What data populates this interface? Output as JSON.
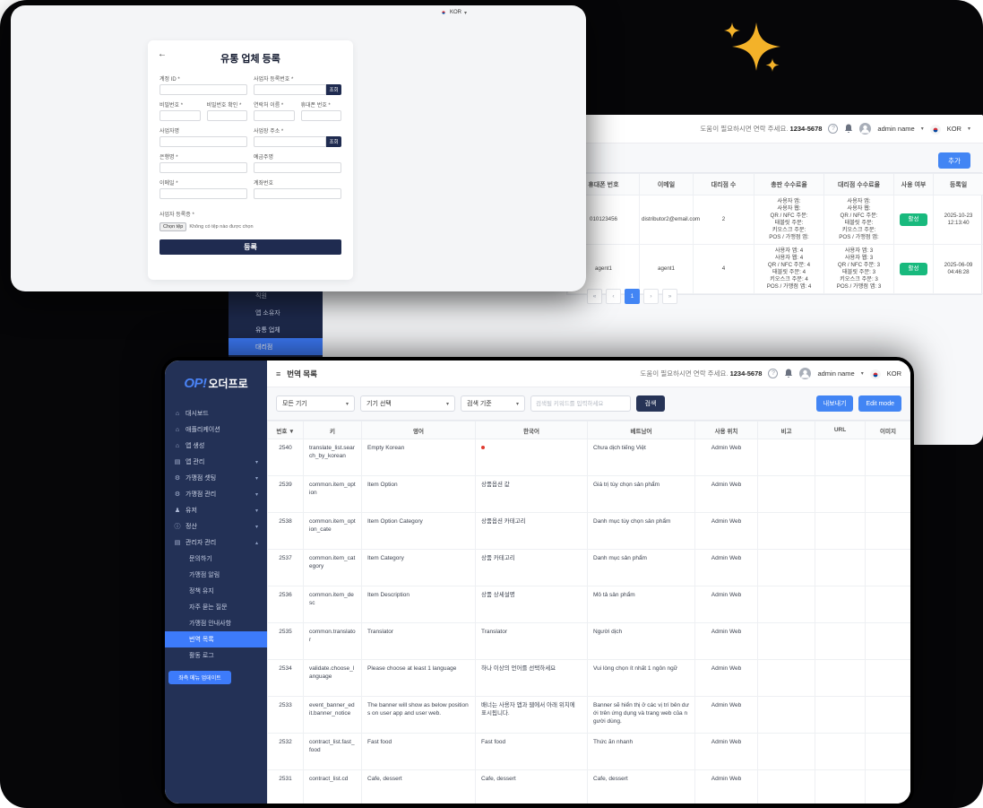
{
  "colors": {
    "accent_blue": "#4285f4",
    "navy": "#1f2b50",
    "sidebar_navy": "#233156",
    "badge_green": "#18b97d",
    "sparkle_gold": "#f3b229",
    "required_red": "#e03a2f"
  },
  "header": {
    "help_text": "도움이 필요하시면 연락 주세요.",
    "phone": "1234-5678",
    "help_icon": "?",
    "user_name": "admin name",
    "lang": "KOR",
    "caret": "▾"
  },
  "register_form": {
    "window_lang": "KOR",
    "back_icon": "←",
    "title": "유통 업체 등록",
    "labels": {
      "account_id": "계정 ID *",
      "business_reg_no": "사업자 등록번호 *",
      "password": "비밀번호 *",
      "password_confirm": "비밀번호 확인 *",
      "contact_name": "연락처 이름 *",
      "mobile_no": "휴대폰 번호 *",
      "business_name": "사업자명",
      "business_address": "사업장 주소 *",
      "bank_name": "은행명 *",
      "account_holder": "예금주명",
      "email": "이메일 *",
      "account_no": "계좌번호",
      "business_cert": "사업자 등록증 *"
    },
    "lookup_button": "조회",
    "file_button": "Chọn tệp",
    "file_status": "Không có tệp nào được chọn",
    "submit_button": "등록"
  },
  "distributor": {
    "add_button": "추가",
    "sidebar": {
      "items": [
        {
          "label": "직원"
        },
        {
          "label": "앱 소유자"
        },
        {
          "label": "유통 업체"
        },
        {
          "label": "대리점",
          "active": true
        },
        {
          "label": "정산",
          "parent": true
        }
      ]
    },
    "table": {
      "headers": [
        "휴대폰 번호",
        "이메일",
        "대리점 수",
        "총판 수수료율",
        "대리점 수수료율",
        "사용 여부",
        "등록일"
      ],
      "rows": [
        {
          "phone": "010123456",
          "email": "distributor2@email.com",
          "agents": "2",
          "fee_head": "사용자 앱:\n사용자 웹:\nQR / NFC 주문:\n태블릿 주문:\n키오스크 주문:\nPOS / 가맹점 앱:",
          "fee_agent": "사용자 앱:\n사용자 웹:\nQR / NFC 주문:\n태블릿 주문:\n키오스크 주문:\nPOS / 가맹점 앱:",
          "status": "활성",
          "date": "2025-10-23\n12:13:40"
        },
        {
          "phone": "agent1",
          "email": "agent1",
          "agents": "4",
          "fee_head": "사용자 앱: 4\n사용자 웹: 4\nQR / NFC 주문: 4\n태블릿 주문: 4\n키오스크 주문: 4\nPOS / 가맹점 앱: 4",
          "fee_agent": "사용자 앱: 3\n사용자 웹: 3\nQR / NFC 주문: 3\n태블릿 주문: 3\n키오스크 주문: 3\nPOS / 가맹점 앱: 3",
          "status": "활성",
          "date": "2025-06-09\n04:46:28"
        }
      ]
    },
    "pagination": [
      {
        "label": "«"
      },
      {
        "label": "‹"
      },
      {
        "label": "1",
        "active": true
      },
      {
        "label": "›"
      },
      {
        "label": "»"
      }
    ]
  },
  "translation": {
    "logo": {
      "brand": "OP!",
      "name": "오더프로"
    },
    "title": "번역 목록",
    "sidebar": {
      "items": [
        {
          "icon": "home",
          "label": "대시보드"
        },
        {
          "icon": "home",
          "label": "애플리케이션"
        },
        {
          "icon": "home",
          "label": "앱 생성"
        },
        {
          "icon": "doc",
          "label": "앱 관리",
          "chevron": true
        },
        {
          "icon": "gear",
          "label": "가맹점 셋팅",
          "chevron": true
        },
        {
          "icon": "gear",
          "label": "가맹점 관리",
          "chevron": true
        },
        {
          "icon": "user",
          "label": "유저",
          "chevron": true
        },
        {
          "icon": "info",
          "label": "정산",
          "chevron": true
        },
        {
          "icon": "doc",
          "label": "관리자 관리",
          "chevron": true,
          "expanded": true
        }
      ],
      "subitems": [
        {
          "label": "문의하기"
        },
        {
          "label": "가맹점 알림"
        },
        {
          "label": "정책 유지"
        },
        {
          "label": "자주 묻는 질문"
        },
        {
          "label": "가맹점 안내사항"
        },
        {
          "label": "번역 목록",
          "active": true
        },
        {
          "label": "활동 로그"
        }
      ],
      "update_button": "좌측 메뉴 업데이트"
    },
    "toolbar": {
      "selects": [
        "모든 기기",
        "기기 선택",
        "검색 기준"
      ],
      "search_placeholder": "검색될 키워드를 입력하세요",
      "search_button": "검색",
      "export_button": "내보내기",
      "edit_button": "Edit mode"
    },
    "table": {
      "headers": [
        "번호 ▼",
        "키",
        "영어",
        "한국어",
        "베트남어",
        "사용 위치",
        "비고",
        "URL",
        "이미지"
      ],
      "rows": [
        {
          "no": "2540",
          "key": "translate_list.search_by_korean",
          "en": "Empty Korean",
          "ko": "•",
          "vi": "Chưa dịch tiếng Việt",
          "loc": "Admin Web",
          "note": "",
          "url": "",
          "img": ""
        },
        {
          "no": "2539",
          "key": "common.item_option",
          "en": "Item Option",
          "ko": "상품옵션 값",
          "vi": "Giá trị tùy chọn sản phẩm",
          "loc": "Admin Web",
          "note": "",
          "url": "",
          "img": ""
        },
        {
          "no": "2538",
          "key": "common.item_option_cate",
          "en": "Item Option Category",
          "ko": "상품옵션 카테고리",
          "vi": "Danh mục tùy chọn sản phẩm",
          "loc": "Admin Web",
          "note": "",
          "url": "",
          "img": ""
        },
        {
          "no": "2537",
          "key": "common.item_category",
          "en": "Item Category",
          "ko": "상품 카테고리",
          "vi": "Danh mục sản phẩm",
          "loc": "Admin Web",
          "note": "",
          "url": "",
          "img": ""
        },
        {
          "no": "2536",
          "key": "common.item_desc",
          "en": "Item Description",
          "ko": "상품 상세설명",
          "vi": "Mô tả sản phẩm",
          "loc": "Admin Web",
          "note": "",
          "url": "",
          "img": ""
        },
        {
          "no": "2535",
          "key": "common.translator",
          "en": "Translator",
          "ko": "Translator",
          "vi": "Người dịch",
          "loc": "Admin Web",
          "note": "",
          "url": "",
          "img": ""
        },
        {
          "no": "2534",
          "key": "validate.choose_language",
          "en": "Please choose at least 1 language",
          "ko": "하나 이상의 언어를 선택하세요",
          "vi": "Vui lòng chọn ít nhất 1 ngôn ngữ",
          "loc": "Admin Web",
          "note": "",
          "url": "",
          "img": ""
        },
        {
          "no": "2533",
          "key": "event_banner_edit.banner_notice",
          "en": "The banner will show as below positions on user app and user web.",
          "ko": "배너는 사용자 앱과 웹에서 아래 위치에 표시됩니다.",
          "vi": "Banner sẽ hiển thị ở các vị trí bên dưới trên ứng dụng và trang web của người dùng.",
          "loc": "Admin Web",
          "note": "",
          "url": "",
          "img": ""
        },
        {
          "no": "2532",
          "key": "contract_list.fast_food",
          "en": "Fast food",
          "ko": "Fast food",
          "vi": "Thức ăn nhanh",
          "loc": "Admin Web",
          "note": "",
          "url": "",
          "img": ""
        },
        {
          "no": "2531",
          "key": "contract_list.cd",
          "en": "Cafe, dessert",
          "ko": "Cafe, dessert",
          "vi": "Cafe, dessert",
          "loc": "Admin Web",
          "note": "",
          "url": "",
          "img": ""
        }
      ]
    }
  }
}
